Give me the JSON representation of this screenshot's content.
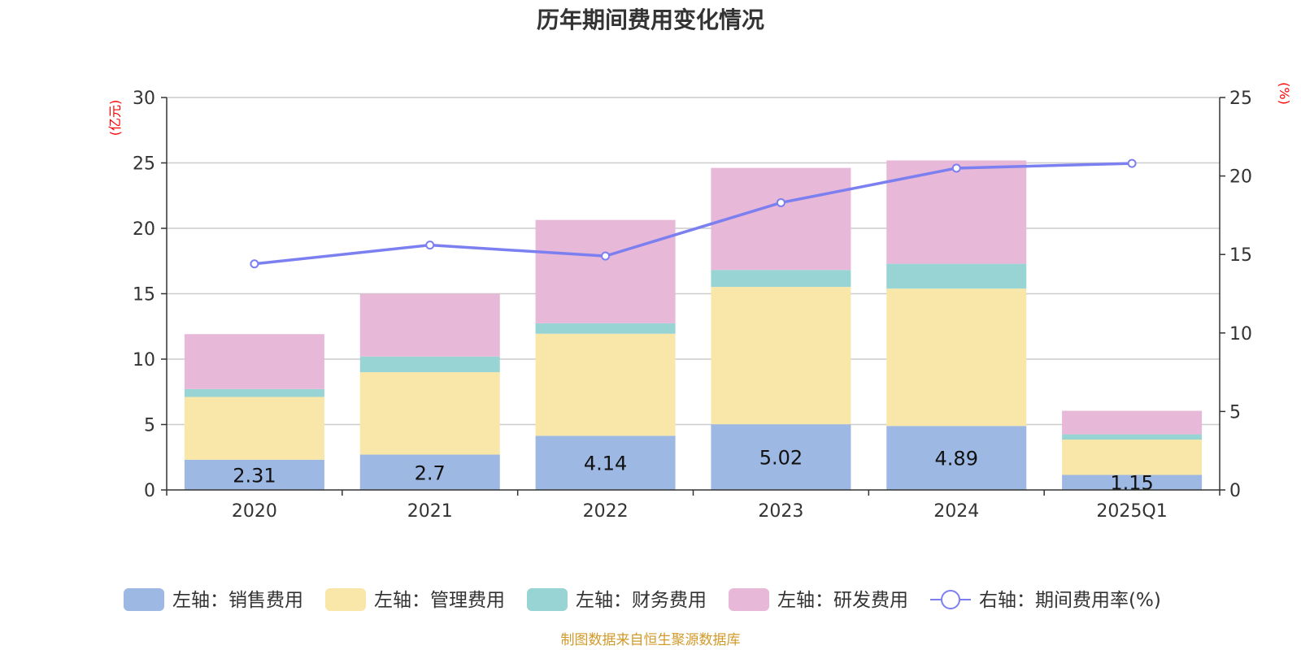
{
  "chart_data": {
    "type": "bar",
    "title": "历年期间费用变化情况",
    "categories": [
      "2020",
      "2021",
      "2022",
      "2023",
      "2024",
      "2025Q1"
    ],
    "left_axis": {
      "unit": "(亿元)",
      "ylim": [
        0,
        30
      ],
      "ticks": [
        "0",
        "5",
        "10",
        "15",
        "20",
        "25",
        "30"
      ]
    },
    "right_axis": {
      "unit": "(%)",
      "ylim": [
        0,
        25
      ],
      "ticks": [
        "0",
        "5",
        "10",
        "15",
        "20",
        "25"
      ]
    },
    "grid": true,
    "legend_position": "bottom",
    "series": [
      {
        "name": "左轴：销售费用",
        "type": "bar",
        "stack": true,
        "color": "#9db8e2",
        "values": [
          2.31,
          2.7,
          4.14,
          5.02,
          4.89,
          1.15
        ],
        "labels": [
          "2.31",
          "2.7",
          "4.14",
          "5.02",
          "4.89",
          "1.15"
        ]
      },
      {
        "name": "左轴：管理费用",
        "type": "bar",
        "stack": true,
        "color": "#f8e7a8",
        "values": [
          4.8,
          6.3,
          7.8,
          10.5,
          10.5,
          2.7
        ]
      },
      {
        "name": "左轴：财务费用",
        "type": "bar",
        "stack": true,
        "color": "#98d4d4",
        "values": [
          0.6,
          1.2,
          0.8,
          1.3,
          1.9,
          0.4
        ]
      },
      {
        "name": "左轴：研发费用",
        "type": "bar",
        "stack": true,
        "color": "#e8b8d8",
        "values": [
          4.2,
          4.8,
          7.9,
          7.8,
          7.9,
          1.8
        ]
      },
      {
        "name": "右轴：期间费用率(%)",
        "type": "line",
        "axis": "right",
        "color": "#7b7ff0",
        "values": [
          14.4,
          15.6,
          14.9,
          18.3,
          20.5,
          20.8
        ]
      }
    ],
    "source": "制图数据来自恒生聚源数据库"
  }
}
